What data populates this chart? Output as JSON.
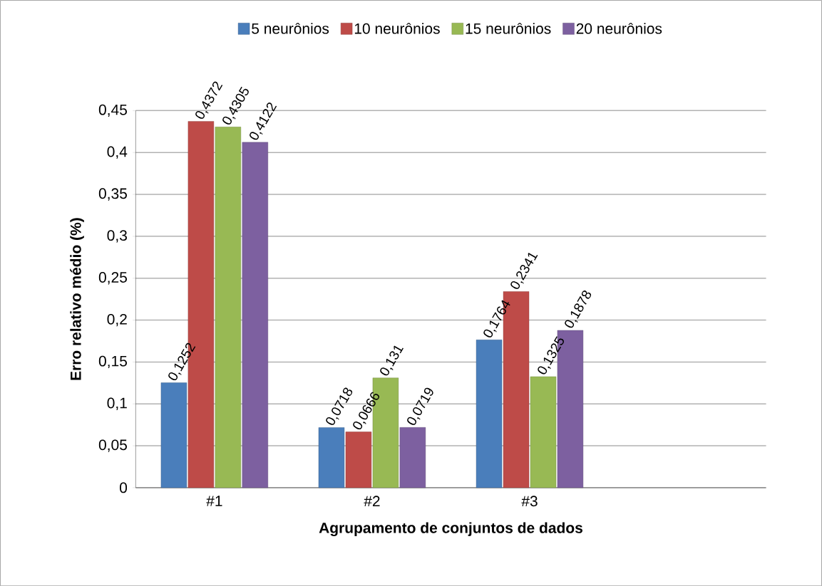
{
  "chart_data": {
    "type": "bar",
    "xlabel": "Agrupamento de conjuntos de dados",
    "ylabel": "Erro relativo médio (%)",
    "categories": [
      "#1",
      "#2",
      "#3",
      null
    ],
    "series": [
      {
        "name": "5 neurônios",
        "color": "#4a7ebb",
        "values": [
          0.1252,
          0.0718,
          0.1764,
          null
        ],
        "value_labels": [
          "0,1252",
          "0,0718",
          "0,1764",
          null
        ]
      },
      {
        "name": "10 neurônios",
        "color": "#be4b48",
        "values": [
          0.4372,
          0.0666,
          0.2341,
          null
        ],
        "value_labels": [
          "0,4372",
          "0,0666",
          "0,2341",
          null
        ]
      },
      {
        "name": "15 neurônios",
        "color": "#98b954",
        "values": [
          0.4305,
          0.131,
          0.1325,
          null
        ],
        "value_labels": [
          "0,4305",
          "0,131",
          "0,1325",
          null
        ]
      },
      {
        "name": "20 neurônios",
        "color": "#7d60a0",
        "values": [
          0.4122,
          0.0719,
          0.1878,
          null
        ],
        "value_labels": [
          "0,4122",
          "0,0719",
          "0,1878",
          null
        ]
      }
    ],
    "ylim": [
      0,
      0.45
    ],
    "yticks": [
      0,
      {
        "value": 0.05,
        "label": "0,05"
      },
      {
        "value": 0.1,
        "label": "0,1"
      },
      {
        "value": 0.15,
        "label": "0,15"
      },
      {
        "value": 0.2,
        "label": "0,2"
      },
      {
        "value": 0.25,
        "label": "0,25"
      },
      {
        "value": 0.3,
        "label": "0,3"
      },
      {
        "value": 0.35,
        "label": "0,35"
      },
      {
        "value": 0.4,
        "label": "0,4"
      },
      {
        "value": 0.45,
        "label": "0,45"
      }
    ],
    "grid": "y",
    "legend": "top"
  }
}
